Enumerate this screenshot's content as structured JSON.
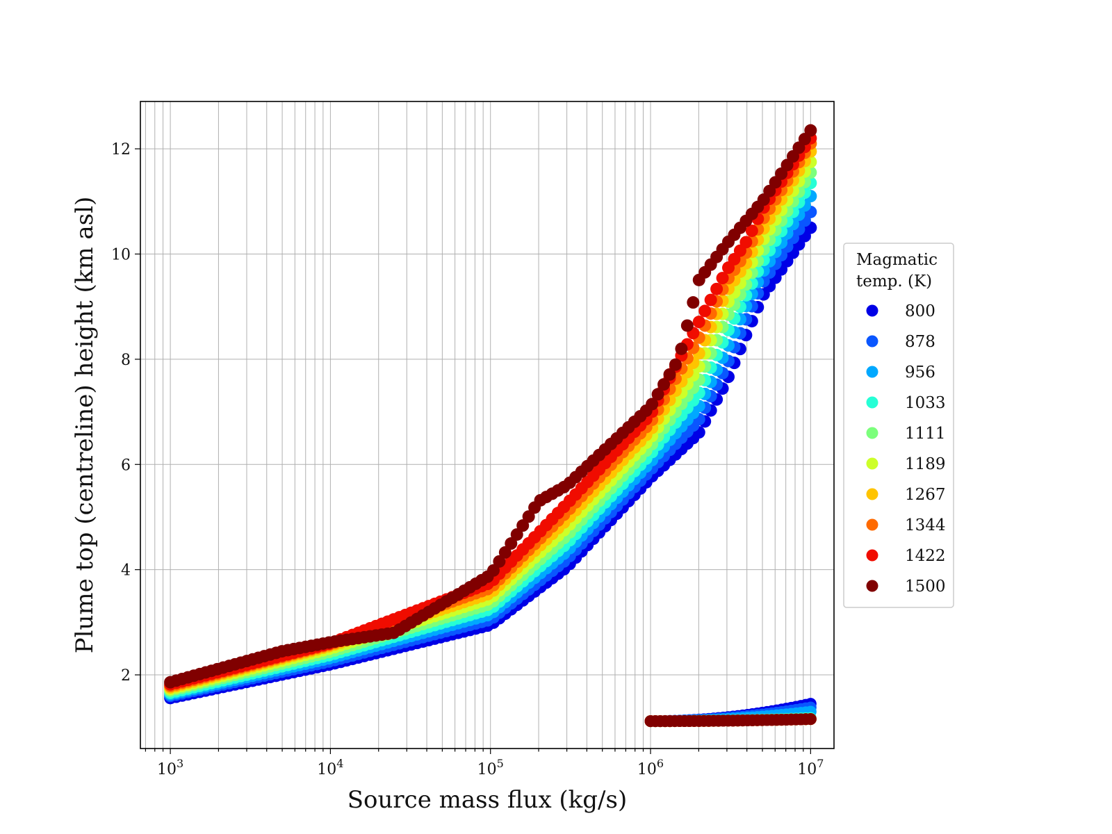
{
  "chart_data": {
    "type": "scatter",
    "title": "",
    "xlabel": "Source mass flux (kg/s)",
    "ylabel": "Plume top (centreline) height (km asl)",
    "xscale": "log",
    "xlim": [
      650,
      14000000
    ],
    "ylim": [
      0.6,
      12.9
    ],
    "x_ticks": [
      1000,
      10000,
      100000,
      1000000,
      10000000
    ],
    "x_tick_labels": [
      {
        "base": "10",
        "exp": "3"
      },
      {
        "base": "10",
        "exp": "4"
      },
      {
        "base": "10",
        "exp": "5"
      },
      {
        "base": "10",
        "exp": "6"
      },
      {
        "base": "10",
        "exp": "7"
      }
    ],
    "y_ticks": [
      2,
      4,
      6,
      8,
      10,
      12
    ],
    "y_tick_labels": [
      "2",
      "4",
      "6",
      "8",
      "10",
      "12"
    ],
    "grid": true,
    "legend": {
      "placement": "right-outside",
      "title_lines": [
        "Magmatic",
        "temp. (K)"
      ]
    },
    "series": [
      {
        "name": "800",
        "color": "#0000e6",
        "x": [
          1000,
          10000,
          100000,
          300000,
          1000000,
          2000000,
          3000000,
          4000000,
          5000000,
          10000000
        ],
        "y": [
          1.56,
          2.2,
          2.95,
          4.05,
          5.75,
          6.6,
          7.6,
          8.5,
          9.2,
          10.5
        ],
        "low_x": [
          1000000,
          10000000
        ],
        "low_y": [
          1.12,
          1.45
        ]
      },
      {
        "name": "878",
        "color": "#0a56ff",
        "x": [
          1000,
          10000,
          100000,
          300000,
          1000000,
          2000000,
          3000000,
          4000000,
          5000000,
          10000000
        ],
        "y": [
          1.6,
          2.26,
          3.05,
          4.2,
          5.9,
          6.85,
          7.9,
          8.8,
          9.45,
          10.8
        ],
        "low_x": [
          1000000,
          10000000
        ],
        "low_y": [
          1.12,
          1.38
        ]
      },
      {
        "name": "956",
        "color": "#00a8ff",
        "x": [
          1000,
          10000,
          100000,
          300000,
          1000000,
          2000000,
          3000000,
          4000000,
          5000000,
          10000000
        ],
        "y": [
          1.63,
          2.32,
          3.15,
          4.35,
          6.05,
          7.1,
          8.2,
          9.05,
          9.65,
          11.1
        ],
        "low_x": [
          1000000,
          10000000
        ],
        "low_y": [
          1.12,
          1.3
        ]
      },
      {
        "name": "1033",
        "color": "#26ffd6",
        "x": [
          1000,
          10000,
          100000,
          300000,
          1000000,
          2000000,
          3000000,
          4000000,
          5000000,
          10000000
        ],
        "y": [
          1.66,
          2.38,
          3.25,
          4.5,
          6.2,
          7.35,
          8.5,
          9.25,
          9.85,
          11.35
        ],
        "low_x": [
          1000000,
          10000000
        ],
        "low_y": [
          1.12,
          1.18
        ]
      },
      {
        "name": "1111",
        "color": "#7cff7c",
        "x": [
          1000,
          10000,
          100000,
          300000,
          1000000,
          2000000,
          3000000,
          4000000,
          5000000,
          10000000
        ],
        "y": [
          1.7,
          2.44,
          3.35,
          4.65,
          6.35,
          7.6,
          8.8,
          9.45,
          10.05,
          11.55
        ],
        "low_x": [
          1000000,
          10000000
        ],
        "low_y": [
          1.12,
          1.16
        ]
      },
      {
        "name": "1189",
        "color": "#cdff29",
        "x": [
          1000,
          10000,
          100000,
          300000,
          1000000,
          2000000,
          3000000,
          4000000,
          5000000,
          10000000
        ],
        "y": [
          1.73,
          2.5,
          3.45,
          4.8,
          6.5,
          7.85,
          9.05,
          9.65,
          10.25,
          11.75
        ],
        "low_x": [
          1000000,
          10000000
        ],
        "low_y": [
          1.12,
          1.16
        ]
      },
      {
        "name": "1267",
        "color": "#ffc400",
        "x": [
          1000,
          10000,
          100000,
          300000,
          1000000,
          2000000,
          3000000,
          4000000,
          5000000,
          10000000
        ],
        "y": [
          1.76,
          2.55,
          3.55,
          4.95,
          6.65,
          8.1,
          9.3,
          9.85,
          10.45,
          11.95
        ],
        "low_x": [
          1000000,
          10000000
        ],
        "low_y": [
          1.12,
          1.16
        ]
      },
      {
        "name": "1344",
        "color": "#ff6a00",
        "x": [
          1000,
          10000,
          100000,
          300000,
          1000000,
          2000000,
          3000000,
          4000000,
          5000000,
          10000000
        ],
        "y": [
          1.79,
          2.58,
          3.65,
          5.1,
          6.8,
          8.4,
          9.5,
          10.05,
          10.65,
          12.1
        ],
        "low_x": [
          1000000,
          10000000
        ],
        "low_y": [
          1.12,
          1.16
        ]
      },
      {
        "name": "1422",
        "color": "#f00c00",
        "x": [
          1000,
          10000,
          100000,
          300000,
          1000000,
          2000000,
          3000000,
          4000000,
          5000000,
          10000000
        ],
        "y": [
          1.82,
          2.6,
          3.75,
          5.25,
          6.95,
          8.7,
          9.7,
          10.25,
          10.85,
          12.2
        ],
        "low_x": [
          1000000,
          10000000
        ],
        "low_y": [
          1.12,
          1.16
        ]
      },
      {
        "name": "1500",
        "color": "#800000",
        "x": [
          1000,
          5000,
          10000,
          25000,
          100000,
          200000,
          300000,
          1000000,
          1500000,
          2000000,
          3000000,
          5000000,
          10000000
        ],
        "y": [
          1.86,
          2.45,
          2.62,
          2.8,
          3.9,
          5.3,
          5.6,
          7.1,
          8.0,
          9.5,
          10.2,
          11.0,
          12.35
        ],
        "low_x": [
          1000000,
          10000000
        ],
        "low_y": [
          1.12,
          1.16
        ]
      }
    ]
  }
}
